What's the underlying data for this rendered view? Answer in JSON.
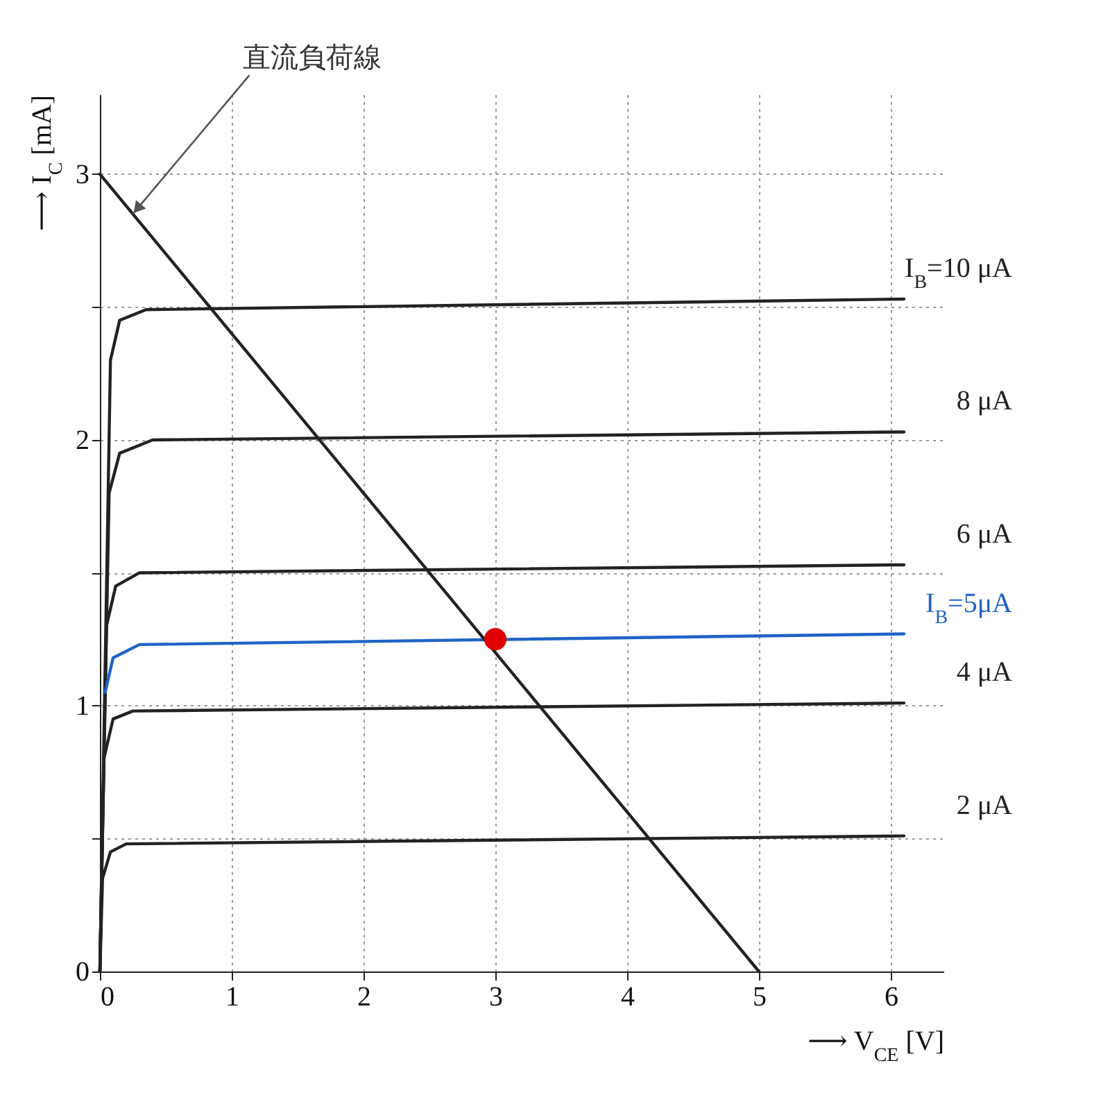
{
  "chart_data": {
    "type": "line",
    "xlabel": "⟶ V$_{CE}$ [V]",
    "ylabel": "⟶ I$_{C}$ [mA]",
    "xlim": [
      0,
      6.4
    ],
    "ylim": [
      0,
      3.3
    ],
    "xticks": [
      0,
      1,
      2,
      3,
      4,
      5,
      6
    ],
    "yticks": [
      0,
      {
        "value": 0.5,
        "label": null
      },
      1,
      {
        "value": 1.5,
        "label": null
      },
      2,
      {
        "value": 2.5,
        "label": null
      },
      3
    ],
    "grid": true,
    "annotations": [
      {
        "text": "直流負荷線",
        "x": 0.25,
        "y": 2.85
      }
    ],
    "series": [
      {
        "name": "I$_{B}$=10 μA",
        "color": "#222222",
        "x": [
          0,
          0.08,
          0.15,
          0.35,
          6.1
        ],
        "values": [
          0,
          2.3,
          2.45,
          2.49,
          2.53
        ]
      },
      {
        "name": "8 μA",
        "color": "#222222",
        "x": [
          0,
          0.07,
          0.15,
          0.4,
          6.1
        ],
        "values": [
          0,
          1.8,
          1.95,
          2,
          2.03
        ]
      },
      {
        "name": "6 μA",
        "color": "#222222",
        "x": [
          0,
          0.05,
          0.12,
          0.3,
          6.1
        ],
        "values": [
          0,
          1.3,
          1.45,
          1.5,
          1.53
        ]
      },
      {
        "name": "I$_{B}$=5μA",
        "color": "#1f63c6",
        "x": [
          0.04,
          0.1,
          0.3,
          6.1
        ],
        "values": [
          1.05,
          1.18,
          1.23,
          1.27
        ]
      },
      {
        "name": "4 μA",
        "color": "#222222",
        "x": [
          0,
          0.03,
          0.1,
          0.25,
          6.1
        ],
        "values": [
          0,
          0.8,
          0.95,
          0.98,
          1.01
        ]
      },
      {
        "name": "2 μA",
        "color": "#222222",
        "x": [
          0,
          0.02,
          0.08,
          0.2,
          6.1
        ],
        "values": [
          0,
          0.35,
          0.45,
          0.48,
          0.51
        ]
      },
      {
        "color": "#222222",
        "x": [
          0,
          5
        ],
        "values": [
          3,
          0
        ]
      },
      {
        "type": "scatter",
        "color": "#e00000",
        "x": [
          3
        ],
        "values": [
          1.25
        ]
      }
    ]
  }
}
